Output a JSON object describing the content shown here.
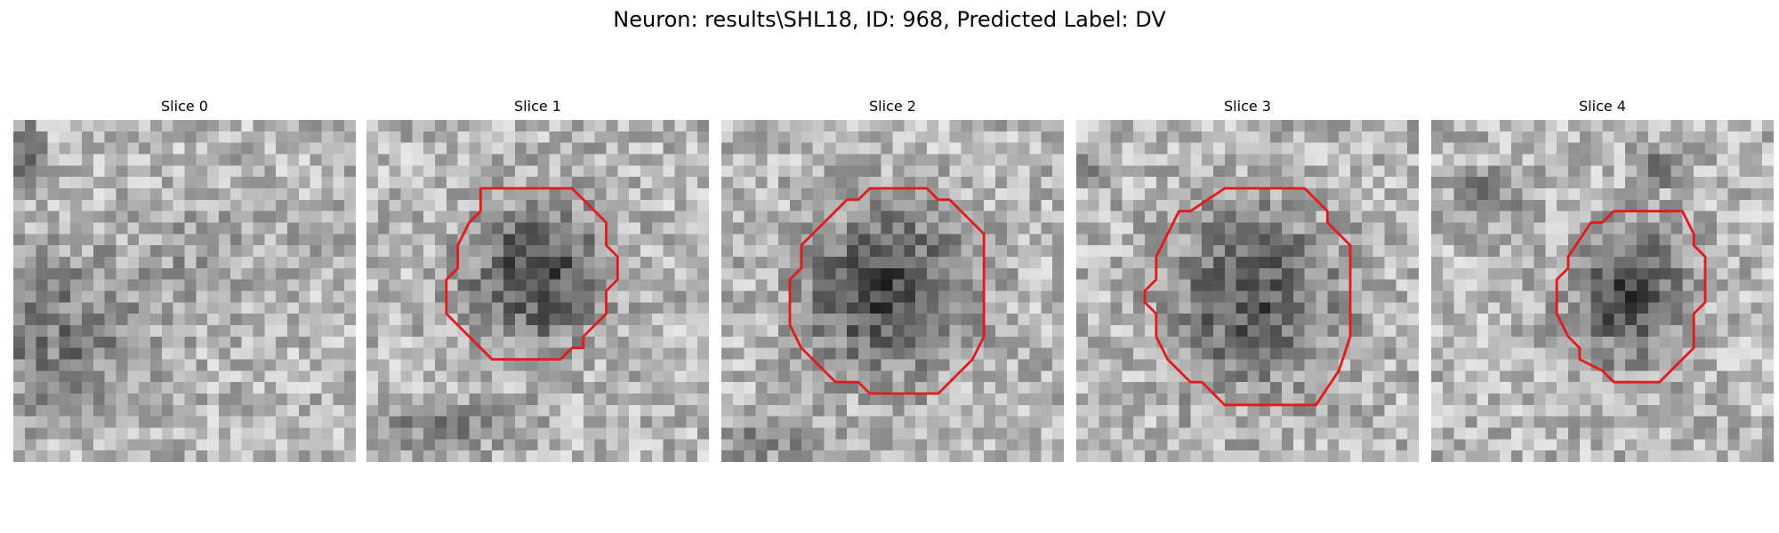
{
  "figure": {
    "title": "Neuron: results\\SHL18, ID: 968, Predicted Label: DV",
    "contour_color": "#e31a1c"
  },
  "panels": [
    {
      "title": "Slice 0",
      "has_contour": false
    },
    {
      "title": "Slice 1",
      "has_contour": true
    },
    {
      "title": "Slice 2",
      "has_contour": true
    },
    {
      "title": "Slice 3",
      "has_contour": true
    },
    {
      "title": "Slice 4",
      "has_contour": true
    }
  ]
}
